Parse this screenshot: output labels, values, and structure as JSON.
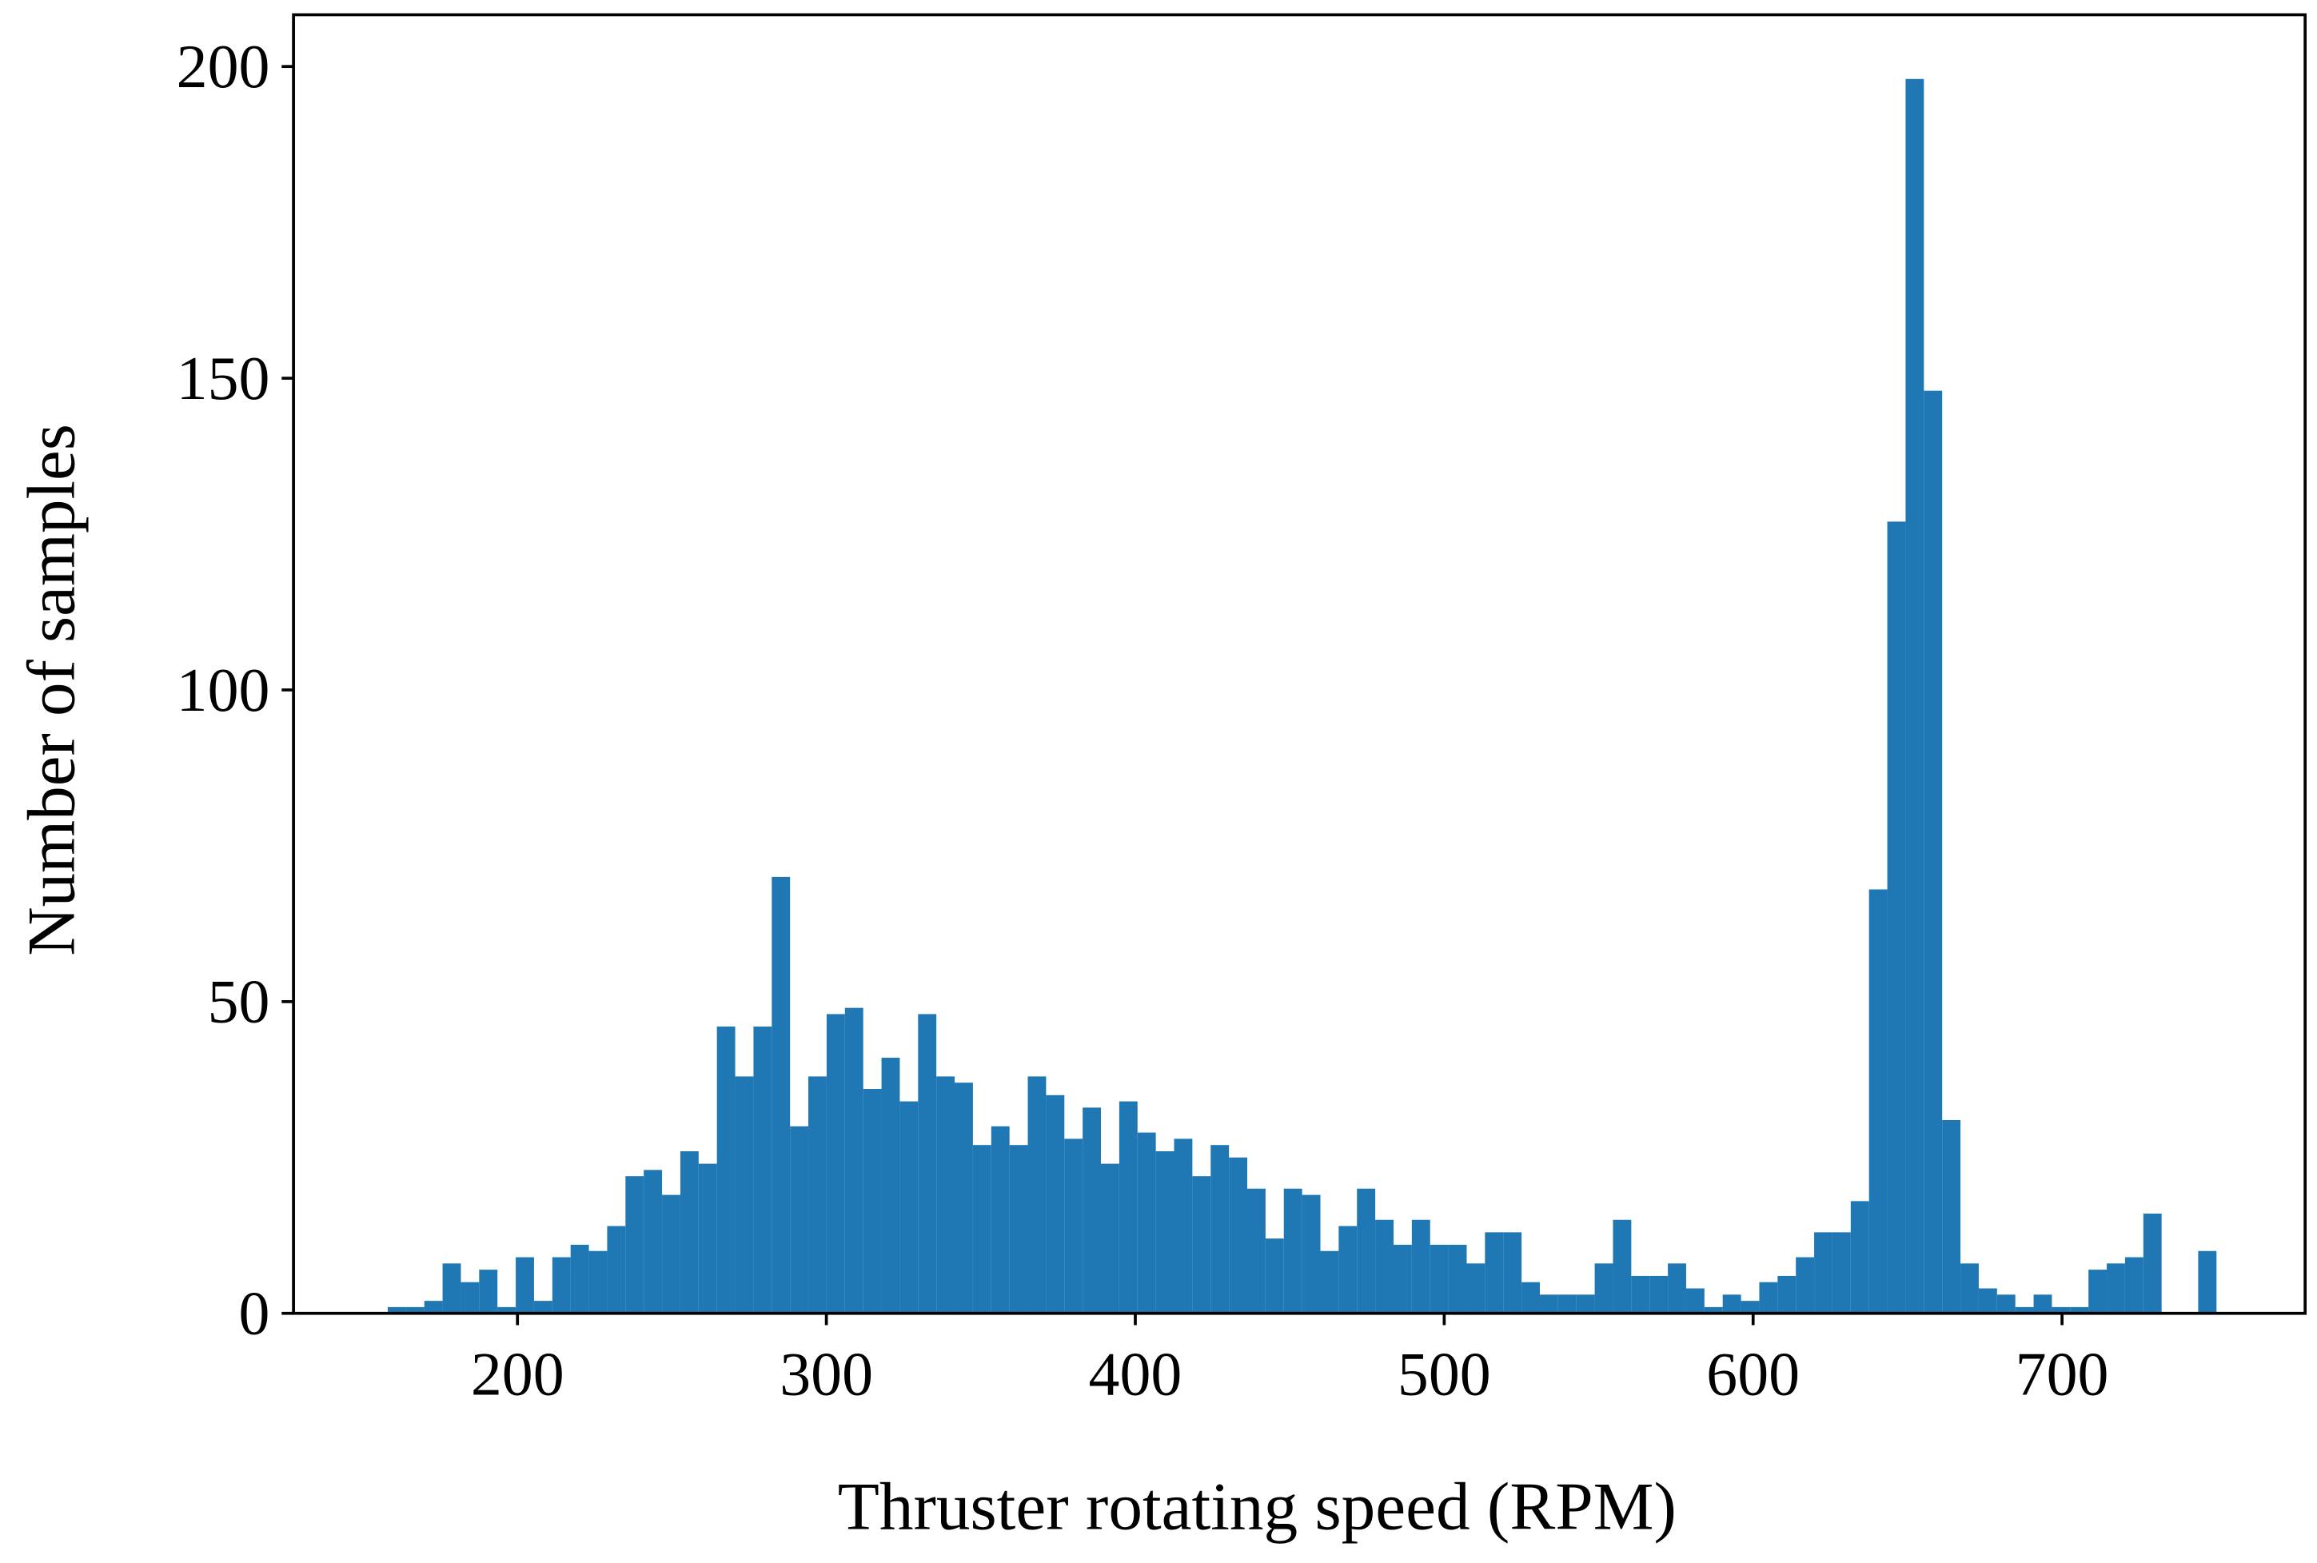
{
  "chart_data": {
    "type": "histogram",
    "x_label": "Thruster rotating speed (RPM)",
    "y_label": "Number of samples",
    "color": "#1f77b4",
    "bins": [
      158.0,
      163.92,
      169.84,
      175.76,
      181.68,
      187.6,
      193.52,
      199.44,
      205.36,
      211.28,
      217.2,
      223.12,
      229.04,
      234.96,
      240.88,
      246.8,
      252.72,
      258.64,
      264.56,
      270.48,
      276.4,
      282.32,
      288.24,
      294.16,
      300.08,
      306.0,
      311.92,
      317.84,
      323.76,
      329.68,
      335.6,
      341.52,
      347.44,
      353.36,
      359.28,
      365.2,
      371.12,
      377.04,
      382.96,
      388.88,
      394.8,
      400.72,
      406.64,
      412.56,
      418.48,
      424.4,
      430.32,
      436.24,
      442.16,
      448.08,
      454.0,
      459.92,
      465.84,
      471.76,
      477.68,
      483.6,
      489.52,
      495.44,
      501.36,
      507.28,
      513.2,
      519.12,
      525.04,
      530.96,
      536.88,
      542.8,
      548.72,
      554.64,
      560.56,
      566.48,
      572.4,
      578.32,
      584.24,
      590.16,
      596.08,
      602.0,
      607.92,
      613.84,
      619.76,
      625.68,
      631.6,
      637.52,
      643.44,
      649.36,
      655.28,
      661.2,
      667.12,
      673.04,
      678.96,
      684.88,
      690.8,
      696.72,
      702.64,
      708.56,
      714.48,
      720.4,
      726.32,
      732.24,
      738.16,
      744.08,
      750.0
    ],
    "values": [
      1,
      1,
      2,
      8,
      5,
      7,
      1,
      9,
      2,
      9,
      11,
      10,
      14,
      22,
      23,
      19,
      26,
      24,
      46,
      38,
      46,
      70,
      30,
      38,
      48,
      49,
      36,
      41,
      34,
      48,
      38,
      37,
      27,
      30,
      27,
      38,
      35,
      28,
      33,
      24,
      34,
      29,
      26,
      28,
      22,
      27,
      25,
      20,
      12,
      20,
      19,
      10,
      14,
      20,
      15,
      11,
      15,
      11,
      11,
      8,
      13,
      13,
      5,
      3,
      3,
      3,
      8,
      15,
      6,
      6,
      8,
      4,
      1,
      3,
      2,
      5,
      6,
      9,
      13,
      13,
      18,
      68,
      127,
      198,
      148,
      31,
      8,
      4,
      3,
      1,
      3,
      1,
      1,
      7,
      8,
      9,
      16,
      0,
      0,
      10
    ],
    "xlim": [
      127.5,
      778.7
    ],
    "ylim": [
      0,
      208.3
    ],
    "xticks": [
      200,
      300,
      400,
      500,
      600,
      700
    ],
    "yticks": [
      0,
      50,
      100,
      150,
      200
    ]
  }
}
